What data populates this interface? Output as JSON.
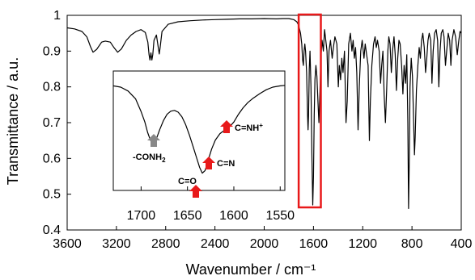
{
  "chart_data": {
    "type": "line",
    "xlabel": "Wavenumber / cm⁻¹",
    "ylabel": "Transmittance / a.u.",
    "xlim": [
      3600,
      400
    ],
    "ylim": [
      0.4,
      1.0
    ],
    "x_ticks": [
      3600,
      3200,
      2800,
      2400,
      2000,
      1600,
      1200,
      800,
      400
    ],
    "y_ticks": [
      0.4,
      0.5,
      0.6,
      0.7,
      0.8,
      0.9,
      1.0
    ],
    "y_tick_labels": [
      "0.4",
      "0.5",
      "0.6",
      "0.7",
      "0.8",
      "0.9",
      "1"
    ],
    "x_tick_labels": [
      "3600",
      "3200",
      "2800",
      "2400",
      "2000",
      "1600",
      "1200",
      "800",
      "400"
    ],
    "series": [
      {
        "points": [
          [
            3600,
            0.965
          ],
          [
            3540,
            0.962
          ],
          [
            3480,
            0.955
          ],
          [
            3440,
            0.94
          ],
          [
            3410,
            0.912
          ],
          [
            3390,
            0.897
          ],
          [
            3360,
            0.905
          ],
          [
            3320,
            0.925
          ],
          [
            3290,
            0.928
          ],
          [
            3250,
            0.925
          ],
          [
            3220,
            0.91
          ],
          [
            3190,
            0.897
          ],
          [
            3160,
            0.906
          ],
          [
            3120,
            0.93
          ],
          [
            3080,
            0.945
          ],
          [
            3040,
            0.955
          ],
          [
            3000,
            0.96
          ],
          [
            2965,
            0.952
          ],
          [
            2945,
            0.925
          ],
          [
            2935,
            0.89
          ],
          [
            2928,
            0.875
          ],
          [
            2920,
            0.895
          ],
          [
            2912,
            0.875
          ],
          [
            2905,
            0.89
          ],
          [
            2895,
            0.93
          ],
          [
            2875,
            0.945
          ],
          [
            2860,
            0.91
          ],
          [
            2852,
            0.892
          ],
          [
            2845,
            0.91
          ],
          [
            2830,
            0.955
          ],
          [
            2780,
            0.975
          ],
          [
            2700,
            0.982
          ],
          [
            2600,
            0.985
          ],
          [
            2500,
            0.987
          ],
          [
            2400,
            0.988
          ],
          [
            2300,
            0.989
          ],
          [
            2200,
            0.99
          ],
          [
            2100,
            0.99
          ],
          [
            2000,
            0.991
          ],
          [
            1900,
            0.99
          ],
          [
            1850,
            0.991
          ],
          [
            1800,
            0.991
          ],
          [
            1760,
            0.988
          ],
          [
            1735,
            0.982
          ],
          [
            1720,
            0.972
          ],
          [
            1705,
            0.95
          ],
          [
            1695,
            0.92
          ],
          [
            1688,
            0.875
          ],
          [
            1682,
            0.86
          ],
          [
            1676,
            0.9
          ],
          [
            1670,
            0.92
          ],
          [
            1664,
            0.9
          ],
          [
            1656,
            0.84
          ],
          [
            1648,
            0.72
          ],
          [
            1644,
            0.68
          ],
          [
            1640,
            0.72
          ],
          [
            1634,
            0.85
          ],
          [
            1628,
            0.9
          ],
          [
            1620,
            0.8
          ],
          [
            1612,
            0.6
          ],
          [
            1606,
            0.47
          ],
          [
            1600,
            0.55
          ],
          [
            1594,
            0.72
          ],
          [
            1588,
            0.82
          ],
          [
            1580,
            0.86
          ],
          [
            1572,
            0.83
          ],
          [
            1564,
            0.76
          ],
          [
            1556,
            0.7
          ],
          [
            1548,
            0.78
          ],
          [
            1540,
            0.88
          ],
          [
            1530,
            0.93
          ],
          [
            1520,
            0.9
          ],
          [
            1510,
            0.96
          ],
          [
            1490,
            0.9
          ],
          [
            1482,
            0.8
          ],
          [
            1474,
            0.9
          ],
          [
            1462,
            0.93
          ],
          [
            1448,
            0.88
          ],
          [
            1438,
            0.91
          ],
          [
            1426,
            0.94
          ],
          [
            1410,
            0.92
          ],
          [
            1398,
            0.8
          ],
          [
            1390,
            0.86
          ],
          [
            1380,
            0.82
          ],
          [
            1370,
            0.88
          ],
          [
            1360,
            0.84
          ],
          [
            1348,
            0.9
          ],
          [
            1336,
            0.7
          ],
          [
            1326,
            0.76
          ],
          [
            1314,
            0.92
          ],
          [
            1300,
            0.95
          ],
          [
            1288,
            0.9
          ],
          [
            1278,
            0.93
          ],
          [
            1268,
            0.88
          ],
          [
            1258,
            0.91
          ],
          [
            1248,
            0.84
          ],
          [
            1238,
            0.68
          ],
          [
            1228,
            0.8
          ],
          [
            1216,
            0.9
          ],
          [
            1204,
            0.93
          ],
          [
            1190,
            0.88
          ],
          [
            1180,
            0.92
          ],
          [
            1168,
            0.89
          ],
          [
            1156,
            0.86
          ],
          [
            1146,
            0.65
          ],
          [
            1138,
            0.76
          ],
          [
            1126,
            0.86
          ],
          [
            1112,
            0.92
          ],
          [
            1100,
            0.94
          ],
          [
            1090,
            0.91
          ],
          [
            1080,
            0.93
          ],
          [
            1066,
            0.9
          ],
          [
            1055,
            0.81
          ],
          [
            1046,
            0.86
          ],
          [
            1036,
            0.9
          ],
          [
            1026,
            0.78
          ],
          [
            1016,
            0.7
          ],
          [
            1006,
            0.79
          ],
          [
            996,
            0.9
          ],
          [
            988,
            0.94
          ],
          [
            978,
            0.92
          ],
          [
            968,
            0.84
          ],
          [
            958,
            0.9
          ],
          [
            946,
            0.94
          ],
          [
            936,
            0.89
          ],
          [
            926,
            0.79
          ],
          [
            916,
            0.88
          ],
          [
            906,
            0.93
          ],
          [
            896,
            0.92
          ],
          [
            884,
            0.86
          ],
          [
            874,
            0.78
          ],
          [
            864,
            0.86
          ],
          [
            852,
            0.81
          ],
          [
            842,
            0.89
          ],
          [
            834,
            0.7
          ],
          [
            828,
            0.46
          ],
          [
            822,
            0.6
          ],
          [
            816,
            0.8
          ],
          [
            806,
            0.88
          ],
          [
            796,
            0.83
          ],
          [
            786,
            0.69
          ],
          [
            780,
            0.61
          ],
          [
            774,
            0.66
          ],
          [
            764,
            0.79
          ],
          [
            752,
            0.86
          ],
          [
            742,
            0.91
          ],
          [
            732,
            0.88
          ],
          [
            722,
            0.93
          ],
          [
            712,
            0.95
          ],
          [
            700,
            0.91
          ],
          [
            690,
            0.84
          ],
          [
            680,
            0.88
          ],
          [
            670,
            0.93
          ],
          [
            660,
            0.95
          ],
          [
            648,
            0.93
          ],
          [
            638,
            0.81
          ],
          [
            628,
            0.9
          ],
          [
            616,
            0.95
          ],
          [
            604,
            0.96
          ],
          [
            592,
            0.93
          ],
          [
            582,
            0.8
          ],
          [
            572,
            0.9
          ],
          [
            562,
            0.95
          ],
          [
            550,
            0.96
          ],
          [
            540,
            0.94
          ],
          [
            528,
            0.86
          ],
          [
            518,
            0.9
          ],
          [
            506,
            0.95
          ],
          [
            494,
            0.93
          ],
          [
            484,
            0.86
          ],
          [
            474,
            0.93
          ],
          [
            460,
            0.96
          ],
          [
            446,
            0.94
          ],
          [
            432,
            0.89
          ],
          [
            420,
            0.93
          ],
          [
            410,
            0.955
          ],
          [
            400,
            0.95
          ]
        ]
      }
    ],
    "highlight_box": {
      "x_range": [
        1720,
        1540
      ],
      "y_range": [
        0.4,
        1.0
      ],
      "color": "#e8191a"
    },
    "inset": {
      "xlim": [
        1730,
        1545
      ],
      "x_ticks": [
        1700,
        1650,
        1600,
        1550
      ],
      "x_tick_labels": [
        "1700",
        "1650",
        "1600",
        "1550"
      ],
      "points": [
        [
          1730,
          0.98
        ],
        [
          1722,
          0.975
        ],
        [
          1714,
          0.96
        ],
        [
          1706,
          0.93
        ],
        [
          1700,
          0.88
        ],
        [
          1696,
          0.84
        ],
        [
          1693,
          0.8
        ],
        [
          1690,
          0.77
        ],
        [
          1687,
          0.755
        ],
        [
          1684,
          0.77
        ],
        [
          1680,
          0.81
        ],
        [
          1676,
          0.845
        ],
        [
          1672,
          0.87
        ],
        [
          1668,
          0.882
        ],
        [
          1664,
          0.885
        ],
        [
          1660,
          0.878
        ],
        [
          1656,
          0.86
        ],
        [
          1652,
          0.83
        ],
        [
          1648,
          0.79
        ],
        [
          1644,
          0.745
        ],
        [
          1640,
          0.7
        ],
        [
          1637,
          0.665
        ],
        [
          1634,
          0.642
        ],
        [
          1631,
          0.652
        ],
        [
          1628,
          0.688
        ],
        [
          1624,
          0.735
        ],
        [
          1620,
          0.77
        ],
        [
          1615,
          0.795
        ],
        [
          1610,
          0.808
        ],
        [
          1605,
          0.82
        ],
        [
          1600,
          0.84
        ],
        [
          1595,
          0.87
        ],
        [
          1590,
          0.895
        ],
        [
          1585,
          0.915
        ],
        [
          1580,
          0.93
        ],
        [
          1572,
          0.95
        ],
        [
          1565,
          0.965
        ],
        [
          1558,
          0.975
        ],
        [
          1550,
          0.98
        ],
        [
          1545,
          0.982
        ]
      ],
      "annotations": [
        {
          "label": "-CONH",
          "subscript": "2",
          "superscript": "",
          "arrow_color": "#888888",
          "x": 1687
        },
        {
          "label": "C=O",
          "subscript": "",
          "superscript": "",
          "arrow_color": "#e8191a",
          "x": 1634
        },
        {
          "label": "C=N",
          "subscript": "",
          "superscript": "",
          "arrow_color": "#e8191a",
          "x": 1617
        },
        {
          "label": "C=NH",
          "subscript": "",
          "superscript": "+",
          "arrow_color": "#e8191a",
          "x": 1593
        }
      ]
    },
    "colors": {
      "line": "#000000",
      "accent": "#e8191a",
      "gray_arrow": "#888888"
    }
  }
}
